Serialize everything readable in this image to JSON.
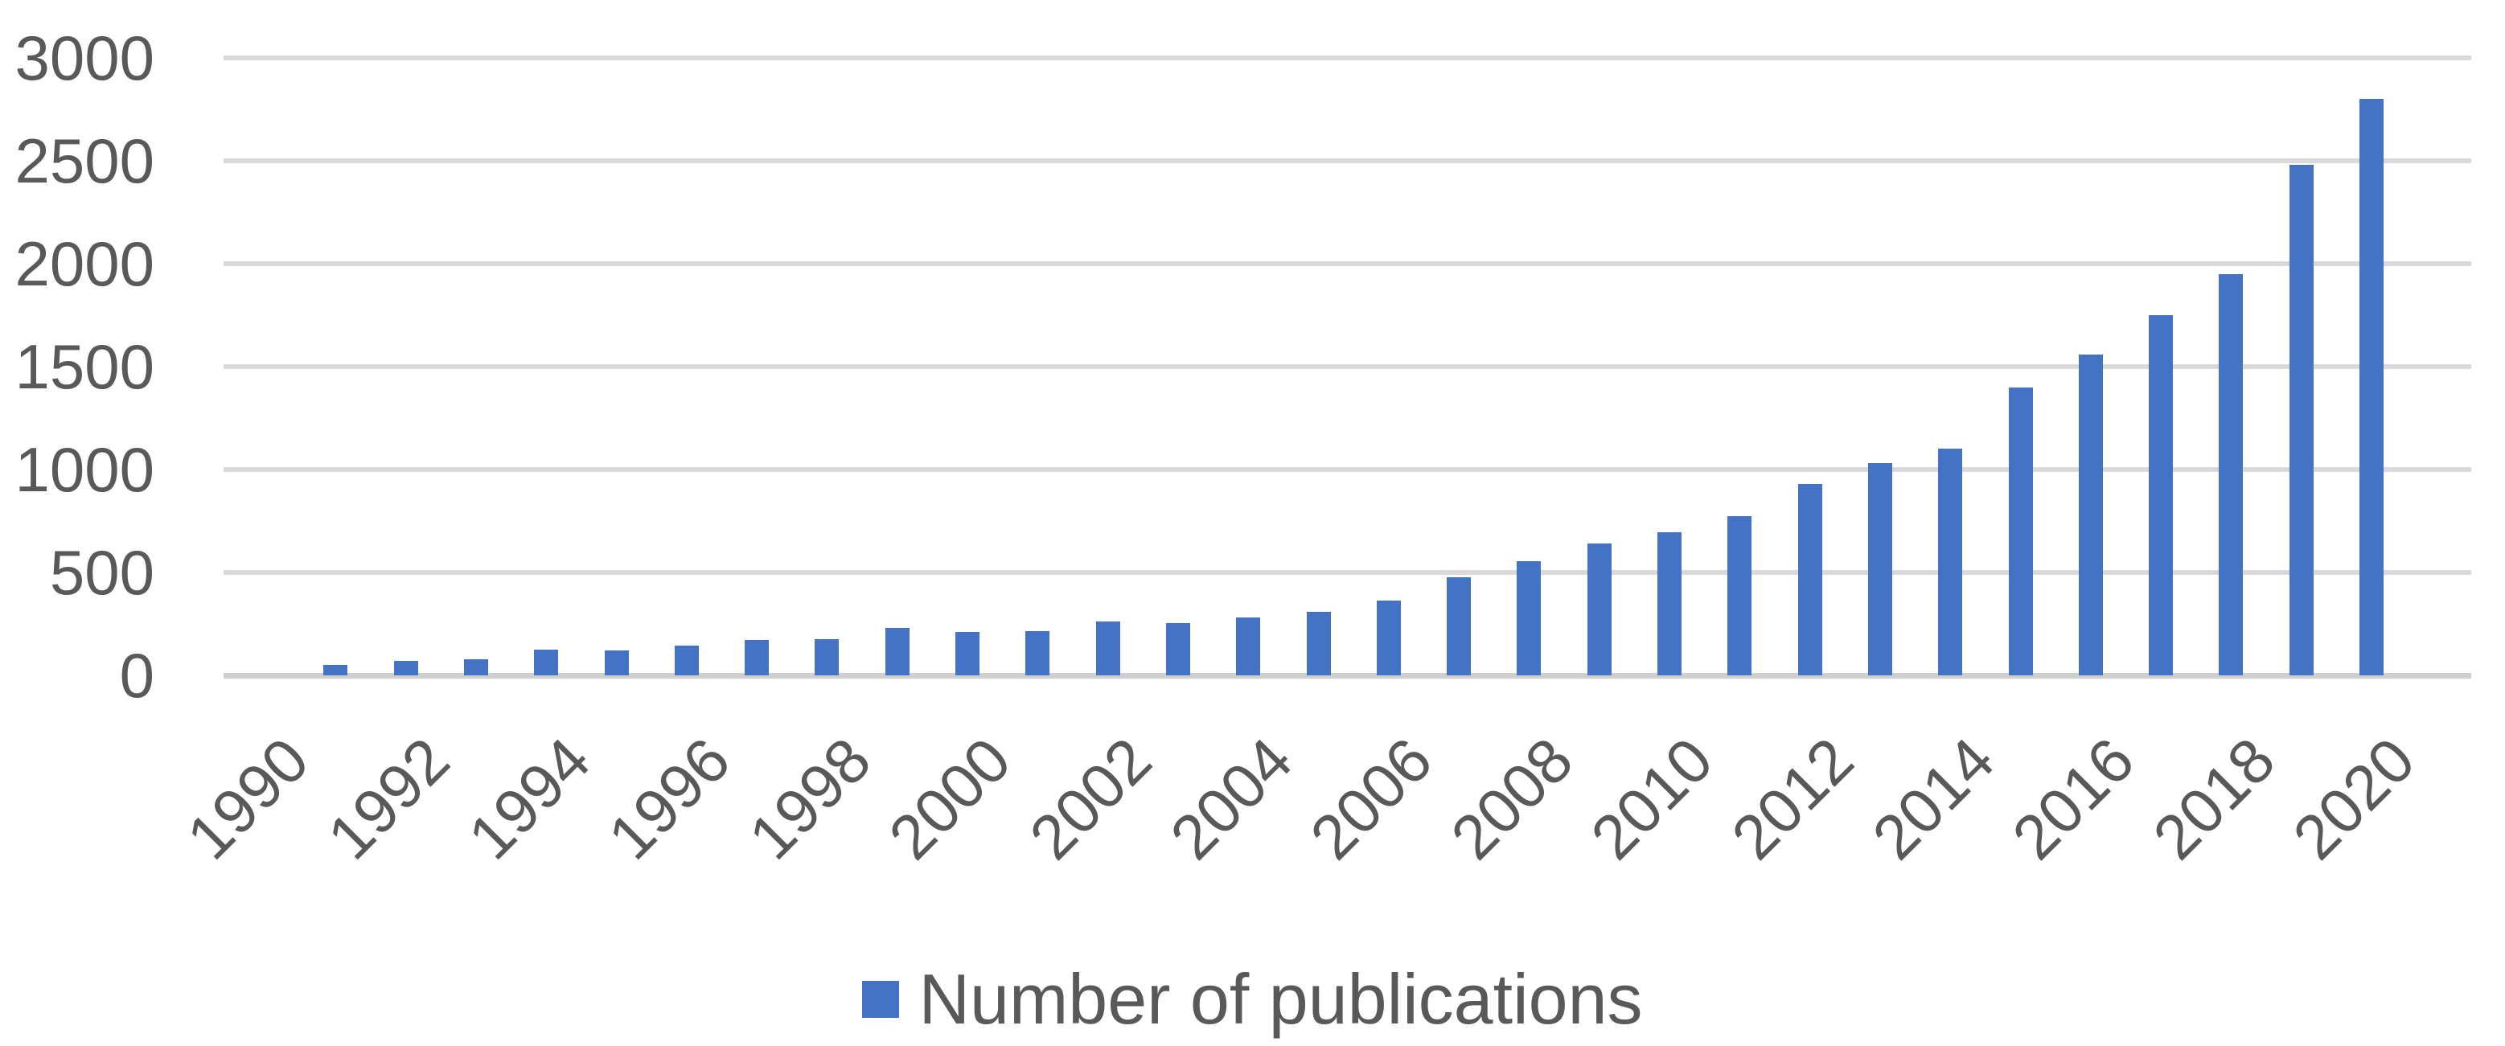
{
  "chart_data": {
    "type": "bar",
    "title": "",
    "xlabel": "",
    "ylabel": "",
    "x": [
      1990,
      1991,
      1992,
      1993,
      1994,
      1995,
      1996,
      1997,
      1998,
      1999,
      2000,
      2001,
      2002,
      2003,
      2004,
      2005,
      2006,
      2007,
      2008,
      2009,
      2010,
      2011,
      2012,
      2013,
      2014,
      2015,
      2016,
      2017,
      2018,
      2019,
      2020
    ],
    "values": [
      0,
      50,
      70,
      80,
      125,
      120,
      145,
      170,
      175,
      230,
      210,
      215,
      260,
      255,
      280,
      310,
      365,
      475,
      555,
      640,
      695,
      775,
      930,
      1030,
      1100,
      1400,
      1560,
      1750,
      1950,
      2480,
      2800
    ],
    "series_name": "Number of publications",
    "ylim": [
      0,
      3000
    ],
    "yticks": [
      0,
      500,
      1000,
      1500,
      2000,
      2500,
      3000
    ],
    "xtick_labels": [
      "1990",
      "1992",
      "1994",
      "1996",
      "1998",
      "2000",
      "2002",
      "2004",
      "2006",
      "2008",
      "2010",
      "2012",
      "2014",
      "2016",
      "2018",
      "2020"
    ],
    "grid": "horizontal",
    "legend_position": "bottom",
    "bar_color": "#4472C4",
    "gridline_color": "#D9D9D9",
    "axis_text_color": "#595959"
  },
  "legend": {
    "label": "Number of publications",
    "marker_color": "#4472C4"
  }
}
